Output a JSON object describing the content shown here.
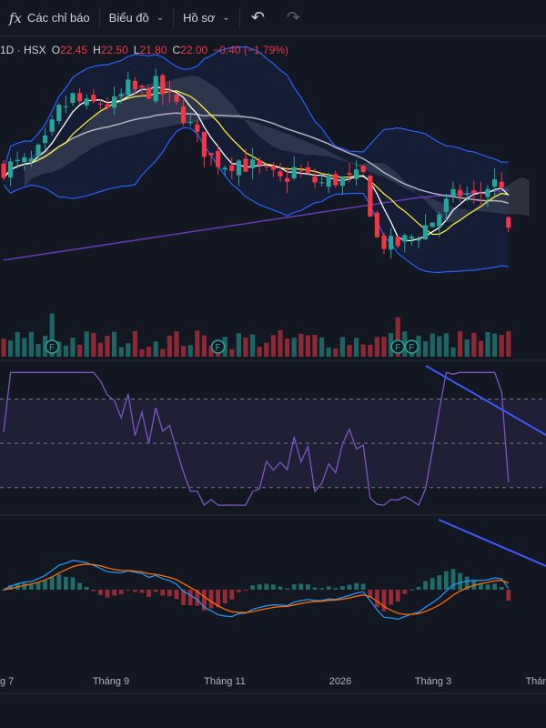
{
  "toolbar": {
    "indicators_label": "Các chỉ báo",
    "chart_label": "Biểu đồ",
    "profile_label": "Hồ sơ",
    "fx_glyph": "fx"
  },
  "legend": {
    "symbol": "1D · HSX",
    "open_label": "O",
    "open": "22.45",
    "high_label": "H",
    "high": "22.50",
    "low_label": "L",
    "low": "21.80",
    "close_label": "C",
    "close": "22.00",
    "change": "−0.40 (−1.79%)"
  },
  "colors": {
    "up": "#26a69a",
    "down": "#f23645",
    "bb": "#2962ff",
    "ma_fast": "#ffffff",
    "ma_mid": "#ffeb3b",
    "ma_slow": "#b2b5be",
    "ma_long": "#673ab7",
    "rsi": "#7e57c2",
    "macd": "#2196f3",
    "signal": "#ff6d00",
    "trend": "#3d5afe"
  },
  "icons": [
    "fx-icon",
    "chevron-down-icon",
    "undo-icon",
    "redo-icon"
  ],
  "chart_data": {
    "type": "candlestick",
    "time_labels": [
      "g 7",
      "Tháng 9",
      "Tháng 11",
      "2026",
      "Tháng 3",
      "Thán"
    ],
    "event_marker_label": "F",
    "ylim": [
      18.0,
      29.0
    ],
    "price_path": [
      [
        0,
        24.6
      ],
      [
        4,
        24.8
      ],
      [
        6,
        25.6
      ],
      [
        8,
        27.0
      ],
      [
        10,
        27.6
      ],
      [
        12,
        27.2
      ],
      [
        14,
        27.4
      ],
      [
        16,
        27.3
      ],
      [
        18,
        28.0
      ],
      [
        20,
        27.8
      ],
      [
        22,
        28.1
      ],
      [
        24,
        27.5
      ],
      [
        26,
        26.9
      ],
      [
        28,
        25.8
      ],
      [
        30,
        25.0
      ],
      [
        32,
        24.8
      ],
      [
        34,
        24.9
      ],
      [
        36,
        24.6
      ],
      [
        38,
        24.3
      ],
      [
        40,
        24.0
      ],
      [
        42,
        24.5
      ],
      [
        44,
        24.1
      ],
      [
        46,
        23.9
      ],
      [
        48,
        24.1
      ],
      [
        50,
        24.0
      ],
      [
        52,
        24.2
      ],
      [
        54,
        21.5
      ],
      [
        56,
        21.2
      ],
      [
        58,
        21.4
      ],
      [
        60,
        21.8
      ],
      [
        62,
        22.3
      ],
      [
        64,
        23.0
      ],
      [
        66,
        23.5
      ],
      [
        68,
        23.3
      ],
      [
        70,
        23.8
      ],
      [
        72,
        24.0
      ],
      [
        73,
        22.0
      ]
    ],
    "moving_averages": [
      {
        "name": "MA fast",
        "color": "#ffffff"
      },
      {
        "name": "MA mid",
        "color": "#ffeb3b"
      },
      {
        "name": "MA slow",
        "color": "#b2b5be"
      },
      {
        "name": "MA long",
        "color": "#673ab7"
      }
    ],
    "rsi_levels": [
      70,
      50,
      30
    ],
    "rsi_range": [
      20,
      85
    ],
    "event_markers_at_bar": [
      7,
      31,
      57,
      59
    ]
  }
}
